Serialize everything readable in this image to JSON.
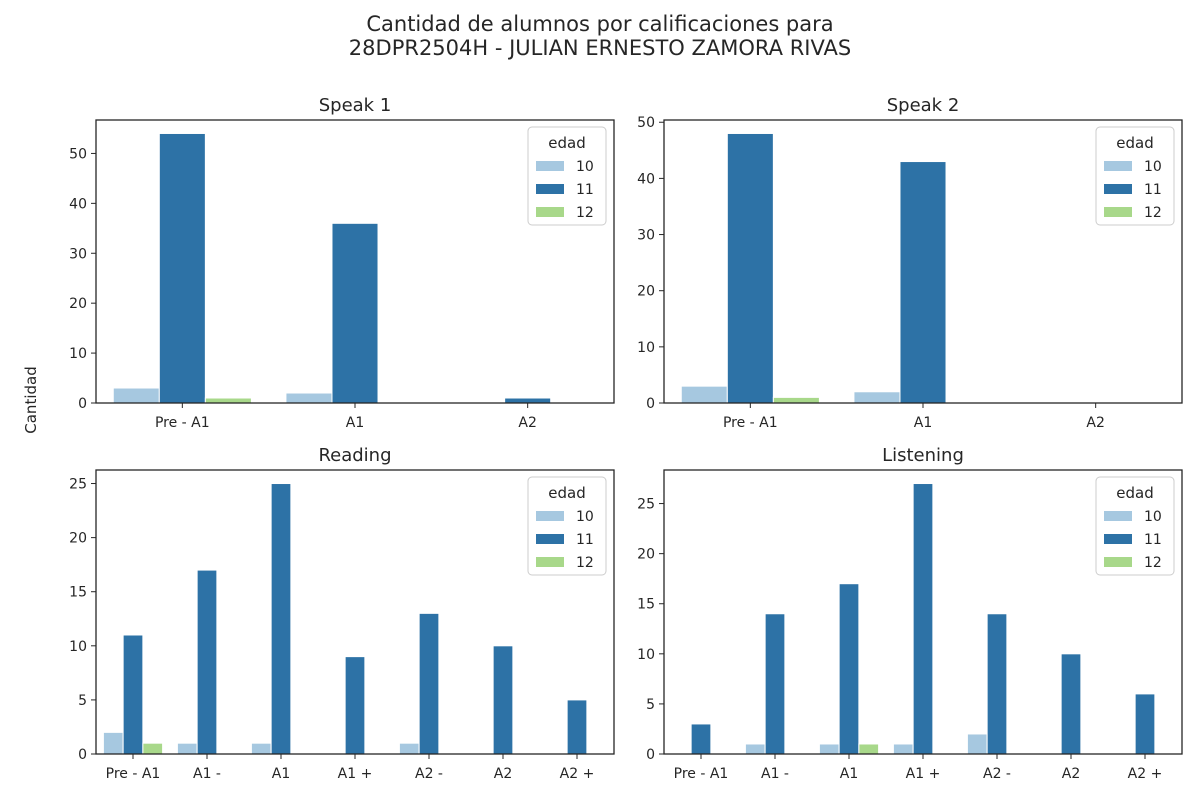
{
  "suptitle": [
    "Cantidad de alumnos por calificaciones para",
    "28DPR2504H - JULIAN ERNESTO ZAMORA RIVAS"
  ],
  "ylabel": "Cantidad",
  "colors": {
    "10": "#a6c8e0",
    "11": "#2d72a6",
    "12": "#a8d88a"
  },
  "chart_data": [
    {
      "type": "bar",
      "title": "Speak 1",
      "categories": [
        "Pre - A1",
        "A1",
        "A2"
      ],
      "series": [
        {
          "name": "10",
          "values": [
            3,
            2,
            0
          ]
        },
        {
          "name": "11",
          "values": [
            54,
            36,
            1
          ]
        },
        {
          "name": "12",
          "values": [
            1,
            0,
            0
          ]
        }
      ],
      "ylim": [
        0,
        56.7
      ],
      "yticks": [
        0,
        10,
        20,
        30,
        40,
        50
      ],
      "legend": {
        "title": "edad",
        "position": "top-right"
      }
    },
    {
      "type": "bar",
      "title": "Speak 2",
      "categories": [
        "Pre - A1",
        "A1",
        "A2"
      ],
      "series": [
        {
          "name": "10",
          "values": [
            3,
            2,
            0
          ]
        },
        {
          "name": "11",
          "values": [
            48,
            43,
            0
          ]
        },
        {
          "name": "12",
          "values": [
            1,
            0,
            0
          ]
        }
      ],
      "ylim": [
        0,
        50.4
      ],
      "yticks": [
        0,
        10,
        20,
        30,
        40,
        50
      ],
      "legend": {
        "title": "edad",
        "position": "top-right"
      }
    },
    {
      "type": "bar",
      "title": "Reading",
      "categories": [
        "Pre - A1",
        "A1 -",
        "A1",
        "A1 +",
        "A2 -",
        "A2",
        "A2 +"
      ],
      "series": [
        {
          "name": "10",
          "values": [
            2,
            1,
            1,
            0,
            1,
            0,
            0
          ]
        },
        {
          "name": "11",
          "values": [
            11,
            17,
            25,
            9,
            13,
            10,
            5
          ]
        },
        {
          "name": "12",
          "values": [
            1,
            0,
            0,
            0,
            0,
            0,
            0
          ]
        }
      ],
      "ylim": [
        0,
        26.25
      ],
      "yticks": [
        0,
        5,
        10,
        15,
        20,
        25
      ],
      "legend": {
        "title": "edad",
        "position": "top-right"
      }
    },
    {
      "type": "bar",
      "title": "Listening",
      "categories": [
        "Pre - A1",
        "A1 -",
        "A1",
        "A1 +",
        "A2 -",
        "A2",
        "A2 +"
      ],
      "series": [
        {
          "name": "10",
          "values": [
            0,
            1,
            1,
            1,
            2,
            0,
            0
          ]
        },
        {
          "name": "11",
          "values": [
            3,
            14,
            17,
            27,
            14,
            10,
            6
          ]
        },
        {
          "name": "12",
          "values": [
            0,
            0,
            1,
            0,
            0,
            0,
            0
          ]
        }
      ],
      "ylim": [
        0,
        28.35
      ],
      "yticks": [
        0,
        5,
        10,
        15,
        20,
        25
      ],
      "legend": {
        "title": "edad",
        "position": "top-right"
      }
    }
  ]
}
